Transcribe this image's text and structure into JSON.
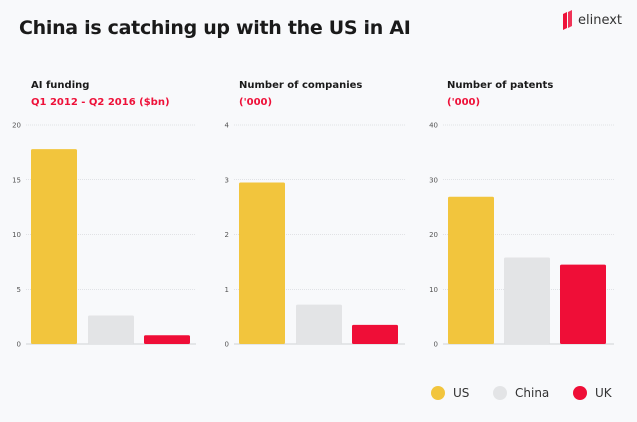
{
  "title": "China is catching up with the US in AI",
  "logo": {
    "text": "elinext"
  },
  "colors": {
    "US": "#f2c53d",
    "China": "#e3e4e6",
    "UK": "#ef0e37",
    "accent": "#ee1139"
  },
  "legend": [
    {
      "label": "US",
      "color": "#f2c53d"
    },
    {
      "label": "China",
      "color": "#e3e4e6"
    },
    {
      "label": "UK",
      "color": "#ef0e37"
    }
  ],
  "chart_data": [
    {
      "type": "bar",
      "title": "AI funding",
      "subtitle": "Q1 2012 - Q2 2016 ($bn)",
      "categories": [
        "US",
        "China",
        "UK"
      ],
      "values": [
        17.8,
        2.6,
        0.8
      ],
      "ylim": [
        0,
        20
      ],
      "yticks": [
        0,
        5,
        10,
        15,
        20
      ],
      "grid": true
    },
    {
      "type": "bar",
      "title": "Number of companies",
      "subtitle": "('000)",
      "categories": [
        "US",
        "China",
        "UK"
      ],
      "values": [
        2.95,
        0.72,
        0.35
      ],
      "ylim": [
        0,
        4
      ],
      "yticks": [
        0,
        1,
        2,
        3,
        4
      ],
      "grid": true
    },
    {
      "type": "bar",
      "title": "Number of patents",
      "subtitle": "('000)",
      "categories": [
        "US",
        "China",
        "UK"
      ],
      "values": [
        26.9,
        15.8,
        14.5
      ],
      "ylim": [
        0,
        40
      ],
      "yticks": [
        0,
        10,
        20,
        30,
        40
      ],
      "grid": true
    }
  ]
}
